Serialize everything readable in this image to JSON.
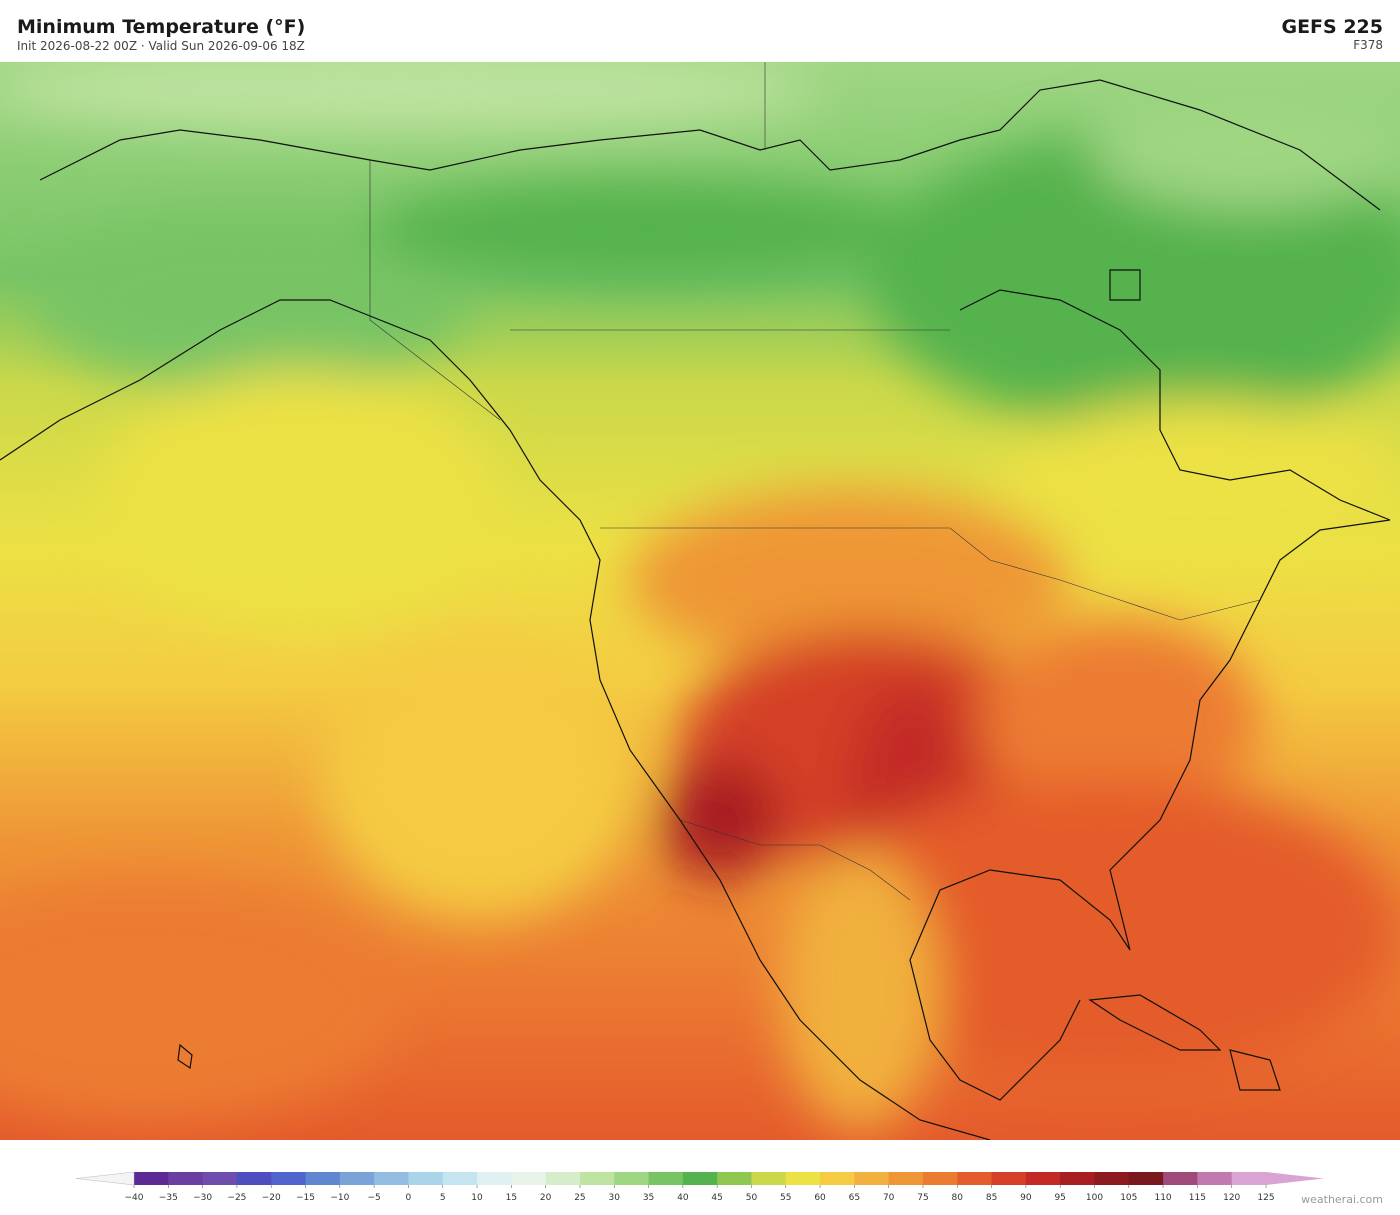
{
  "header": {
    "title": "Minimum Temperature  (°F)",
    "subtitle": "Init 2026-08-22 00Z   ·   Valid Sun 2026-09-06 18Z",
    "model": "GEFS  225",
    "forecast_hour": "F378"
  },
  "colorbar": {
    "ticks": [
      {
        "value": -40,
        "label": "−40"
      },
      {
        "value": -35,
        "label": "−35"
      },
      {
        "value": -30,
        "label": "−30"
      },
      {
        "value": -25,
        "label": "−25"
      },
      {
        "value": -20,
        "label": "−20"
      },
      {
        "value": -15,
        "label": "−15"
      },
      {
        "value": -10,
        "label": "−10"
      },
      {
        "value": -5,
        "label": "−5"
      },
      0,
      5,
      10,
      15,
      20,
      25,
      30,
      35,
      40,
      45,
      50,
      55,
      60,
      65,
      70,
      75,
      80,
      85,
      90,
      95,
      100,
      105,
      110,
      115,
      120,
      125
    ],
    "colors": [
      "#5b2a95",
      "#6a3fa0",
      "#6e4dad",
      "#4d4fc0",
      "#4f64cd",
      "#5f86d0",
      "#7aa3d8",
      "#92bde0",
      "#a9d4ea",
      "#c4e4f0",
      "#dff0f3",
      "#e8f4ea",
      "#d5edca",
      "#bfe3a0",
      "#9fd682",
      "#78c465",
      "#55b24e",
      "#8ec850",
      "#cbd84a",
      "#ece145",
      "#f4cb42",
      "#f1b13e",
      "#ee9636",
      "#ec7b32",
      "#e45b2c",
      "#d43f28",
      "#c22a25",
      "#a81f22",
      "#8d1a1f",
      "#7a1820",
      "#9e4a7a",
      "#c07ab0",
      "#d9a4d3"
    ],
    "under_color": "#f4f4f4",
    "over_color": "#d9a4d3"
  },
  "credit": "weatherai.com"
}
